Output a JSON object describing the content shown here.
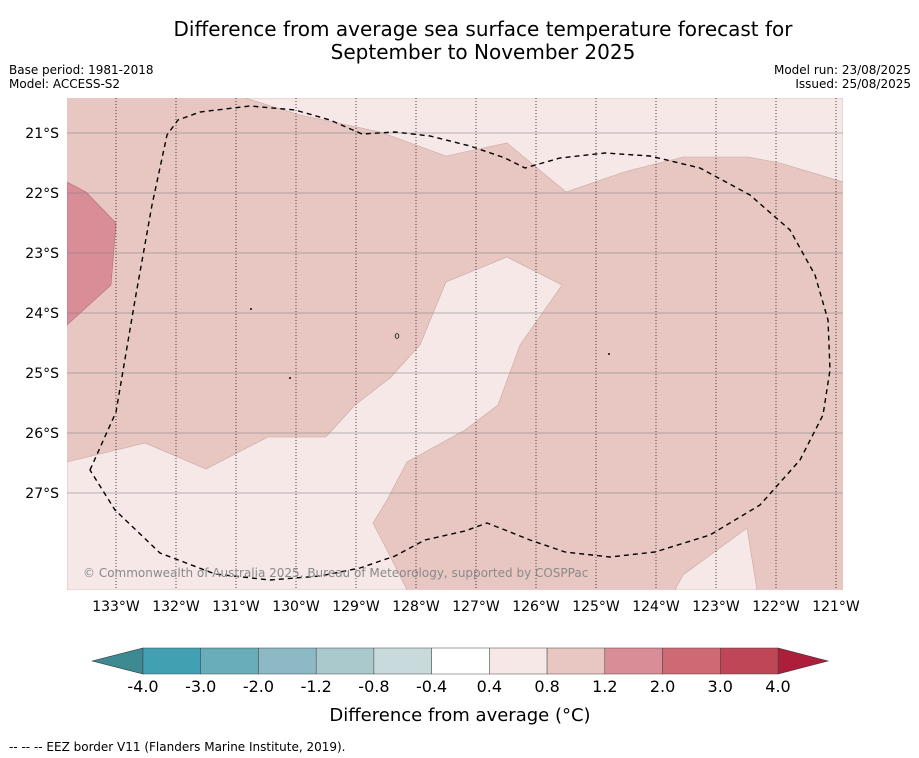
{
  "title_line1": "Difference from average sea surface temperature forecast for",
  "title_line2": "September to November 2025",
  "base_period": "Base period: 1981-2018",
  "model": "Model: ACCESS-S2",
  "model_run": "Model run: 23/08/2025",
  "issued": "Issued: 25/08/2025",
  "lat_labels": [
    "21°S",
    "22°S",
    "23°S",
    "24°S",
    "25°S",
    "26°S",
    "27°S"
  ],
  "lon_labels": [
    "133°W",
    "132°W",
    "131°W",
    "130°W",
    "129°W",
    "128°W",
    "127°W",
    "126°W",
    "125°W",
    "124°W",
    "123°W",
    "122°W",
    "121°W"
  ],
  "credit": "© Commonwealth of Australia 2025, Bureau of Meteorology, supported by COSPPac",
  "colorbar": {
    "title": "Difference from average (°C)",
    "ticks": [
      "-4.0",
      "-3.0",
      "-2.0",
      "-1.2",
      "-0.8",
      "-0.4",
      "0.4",
      "0.8",
      "1.2",
      "2.0",
      "3.0",
      "4.0"
    ],
    "colors": [
      "#41a0b1",
      "#6aadba",
      "#8db9c4",
      "#a9c9cc",
      "#c9dadd",
      "#ffffff",
      "#f5e8e6",
      "#e8c7c2",
      "#d98e97",
      "#cd6a74",
      "#be4656"
    ],
    "under_color": "#3d8a93",
    "over_color": "#ad1e3a"
  },
  "footnote": "--  --  -- EEZ border V11 (Flanders Marine Institute, 2019)."
}
